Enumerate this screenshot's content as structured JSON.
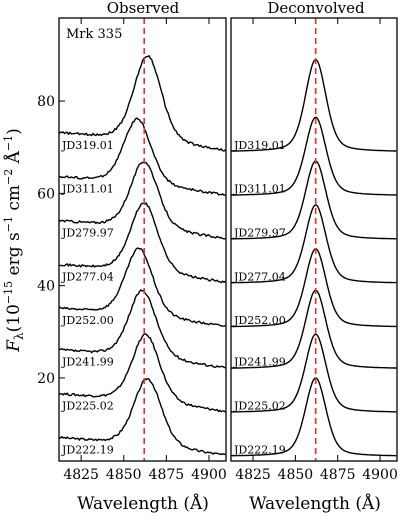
{
  "chart_data": [
    {
      "type": "line",
      "title": "Observed",
      "object_label": "Mrk 335",
      "xlabel": "Wavelength (Å)",
      "ylabel": "F",
      "ylabel_sub": "λ",
      "ylabel_units_pre": "(10",
      "ylabel_exp1": "−15",
      "ylabel_mid": " erg s",
      "ylabel_exp2": "−1",
      "ylabel_mid2": " cm",
      "ylabel_exp3": "−2",
      "ylabel_mid3": " Å",
      "ylabel_exp4": "−1",
      "ylabel_close": ")",
      "xlim": [
        4812,
        4910
      ],
      "ylim": [
        2,
        98
      ],
      "xticks": [
        4825,
        4850,
        4875,
        4900
      ],
      "yticks": [
        20,
        40,
        60,
        80
      ],
      "reference_wavelength": 4862,
      "peak_widths": [
        8,
        8,
        8,
        8,
        8,
        8,
        8,
        8
      ],
      "series": [
        {
          "label": "JD222.19",
          "baseline": 3,
          "peak_height": 15,
          "peak_center": 4864,
          "continuum_slope": 0.004
        },
        {
          "label": "JD225.02",
          "baseline": 12.5,
          "peak_height": 15,
          "peak_center": 4863,
          "continuum_slope": 0.004
        },
        {
          "label": "JD241.99",
          "baseline": 22,
          "peak_height": 15,
          "peak_center": 4861,
          "continuum_slope": 0.004
        },
        {
          "label": "JD252.00",
          "baseline": 31,
          "peak_height": 15,
          "peak_center": 4859,
          "continuum_slope": 0.004
        },
        {
          "label": "JD277.04",
          "baseline": 40.5,
          "peak_height": 15.5,
          "peak_center": 4862,
          "continuum_slope": 0.004
        },
        {
          "label": "JD279.97",
          "baseline": 50,
          "peak_height": 15,
          "peak_center": 4862,
          "continuum_slope": 0.004
        },
        {
          "label": "JD311.01",
          "baseline": 59.5,
          "peak_height": 14.5,
          "peak_center": 4858,
          "continuum_slope": 0.004
        },
        {
          "label": "JD319.01",
          "baseline": 69,
          "peak_height": 19,
          "peak_center": 4864,
          "continuum_slope": 0.004
        }
      ],
      "reference_line_color": "#e8302c"
    },
    {
      "type": "line",
      "title": "Deconvolved",
      "xlabel": "Wavelength (Å)",
      "xlim": [
        4812,
        4910
      ],
      "ylim": [
        2,
        98
      ],
      "xticks": [
        4825,
        4850,
        4875,
        4900
      ],
      "reference_wavelength": 4862,
      "peak_widths": [
        6,
        6,
        6,
        6,
        6,
        6,
        6,
        6
      ],
      "series": [
        {
          "label": "JD222.19",
          "baseline": 3,
          "peak_height": 17,
          "peak_center": 4862,
          "continuum_slope": 0.0
        },
        {
          "label": "JD225.02",
          "baseline": 12.5,
          "peak_height": 17,
          "peak_center": 4862,
          "continuum_slope": 0.0
        },
        {
          "label": "JD241.99",
          "baseline": 22,
          "peak_height": 17,
          "peak_center": 4862,
          "continuum_slope": 0.0
        },
        {
          "label": "JD252.00",
          "baseline": 31,
          "peak_height": 17,
          "peak_center": 4862,
          "continuum_slope": 0.0
        },
        {
          "label": "JD277.04",
          "baseline": 40.5,
          "peak_height": 17,
          "peak_center": 4862,
          "continuum_slope": 0.0
        },
        {
          "label": "JD279.97",
          "baseline": 50,
          "peak_height": 17,
          "peak_center": 4862,
          "continuum_slope": 0.0
        },
        {
          "label": "JD311.01",
          "baseline": 59.5,
          "peak_height": 17,
          "peak_center": 4862,
          "continuum_slope": 0.0
        },
        {
          "label": "JD319.01",
          "baseline": 69,
          "peak_height": 20,
          "peak_center": 4862,
          "continuum_slope": 0.0
        }
      ],
      "reference_line_color": "#e8302c"
    }
  ]
}
